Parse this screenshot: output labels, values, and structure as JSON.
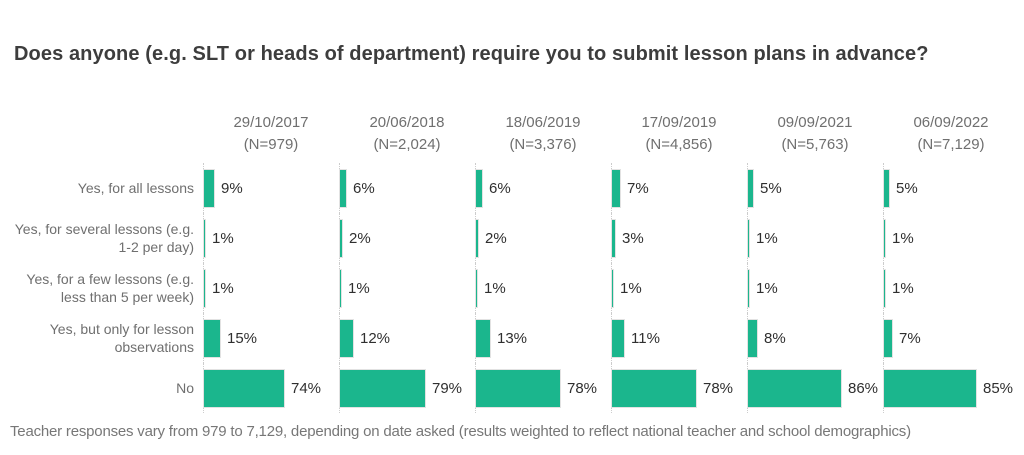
{
  "title": "Does anyone (e.g. SLT or heads of department) require you to submit lesson plans in advance?",
  "footer": "Teacher responses vary from 979 to 7,129, depending on date asked (results weighted to reflect national teacher and school demographics)",
  "colors": {
    "bar": "#1bb68d",
    "title_text": "#3d3d3d",
    "label_text": "#6f6f6f",
    "value_text": "#2f2f2f",
    "axis_line": "#cccccc"
  },
  "chart_data": {
    "type": "bar",
    "orientation": "horizontal",
    "title": "Does anyone (e.g. SLT or heads of department) require you to submit lesson plans in advance?",
    "xlim": [
      0,
      100
    ],
    "value_suffix": "%",
    "grid": false,
    "legend": "none",
    "categories": [
      "Yes, for all lessons",
      "Yes, for several lessons (e.g. 1-2 per day)",
      "Yes, for a few lessons (e.g. less than 5 per week)",
      "Yes, but only for lesson observations",
      "No"
    ],
    "columns": [
      {
        "date": "29/10/2017",
        "n_label": "(N=979)"
      },
      {
        "date": "20/06/2018",
        "n_label": "(N=2,024)"
      },
      {
        "date": "18/06/2019",
        "n_label": "(N=3,376)"
      },
      {
        "date": "17/09/2019",
        "n_label": "(N=4,856)"
      },
      {
        "date": "09/09/2021",
        "n_label": "(N=5,763)"
      },
      {
        "date": "06/09/2022",
        "n_label": "(N=7,129)"
      }
    ],
    "series": [
      {
        "name": "29/10/2017",
        "values": [
          9,
          1,
          1,
          15,
          74
        ],
        "labels": [
          "9%",
          "1%",
          "1%",
          "15%",
          "74%"
        ]
      },
      {
        "name": "20/06/2018",
        "values": [
          6,
          2,
          1,
          12,
          79
        ],
        "labels": [
          "6%",
          "2%",
          "1%",
          "12%",
          "79%"
        ]
      },
      {
        "name": "18/06/2019",
        "values": [
          6,
          2,
          1,
          13,
          78
        ],
        "labels": [
          "6%",
          "2%",
          "1%",
          "13%",
          "78%"
        ]
      },
      {
        "name": "17/09/2019",
        "values": [
          7,
          3,
          1,
          11,
          78
        ],
        "labels": [
          "7%",
          "3%",
          "1%",
          "11%",
          "78%"
        ]
      },
      {
        "name": "09/09/2021",
        "values": [
          5,
          1,
          1,
          8,
          86
        ],
        "labels": [
          "5%",
          "1%",
          "1%",
          "8%",
          "86%"
        ]
      },
      {
        "name": "06/09/2022",
        "values": [
          5,
          1,
          1,
          7,
          85
        ],
        "labels": [
          "5%",
          "1%",
          "1%",
          "7%",
          "85%"
        ]
      }
    ]
  }
}
